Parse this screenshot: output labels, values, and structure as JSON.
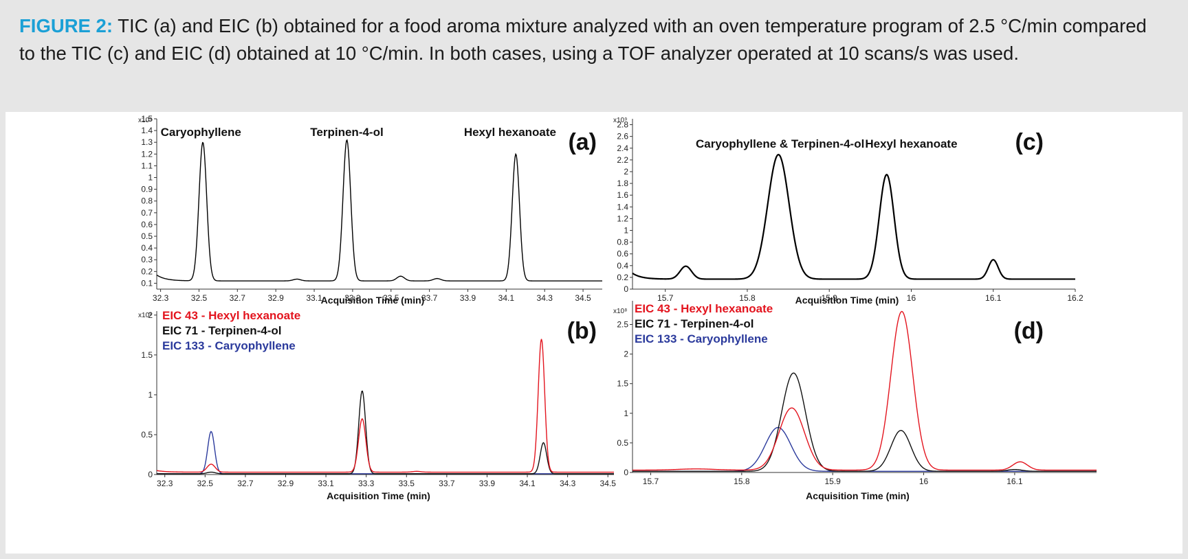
{
  "caption": {
    "label": "FIGURE 2:",
    "text": "TIC (a) and EIC (b) obtained for a food aroma mixture analyzed with an oven temperature program of 2.5 °C/min compared to the TIC (c) and EIC (d) obtained at 10 °C/min. In both cases, using a TOF analyzer operated at 10 scans/s was used."
  },
  "chart_data": [
    {
      "id": "a",
      "type": "line",
      "panel_label": "(a)",
      "xlabel": "Acquisition Time (min)",
      "y_multiplier": "x10⁹",
      "xlim": [
        32.28,
        34.6
      ],
      "ylim": [
        0.05,
        1.5
      ],
      "xticks": [
        32.3,
        32.5,
        32.7,
        32.9,
        33.1,
        33.3,
        33.5,
        33.7,
        33.9,
        34.1,
        34.3,
        34.5
      ],
      "yticks": [
        0.1,
        0.2,
        0.3,
        0.4,
        0.5,
        0.6,
        0.7,
        0.8,
        0.9,
        1,
        1.1,
        1.2,
        1.3,
        1.4,
        1.5
      ],
      "annotations": [
        {
          "text": "Caryophyllene",
          "x": 32.51
        },
        {
          "text": "Terpinen-4-ol",
          "x": 33.27
        },
        {
          "text": "Hexyl hexanoate",
          "x": 34.12
        }
      ],
      "series": [
        {
          "name": "TIC",
          "color": "#000000",
          "baseline": 0.12,
          "start": {
            "x": 32.28,
            "y": 0.17
          },
          "peaks": [
            {
              "x": 32.52,
              "h": 1.18,
              "w": 0.02
            },
            {
              "x": 33.27,
              "h": 1.2,
              "w": 0.02
            },
            {
              "x": 34.15,
              "h": 1.08,
              "w": 0.019
            },
            {
              "x": 33.01,
              "h": 0.015,
              "w": 0.02
            },
            {
              "x": 33.55,
              "h": 0.04,
              "w": 0.02
            },
            {
              "x": 33.74,
              "h": 0.02,
              "w": 0.02
            }
          ]
        }
      ]
    },
    {
      "id": "b",
      "type": "line",
      "panel_label": "(b)",
      "xlabel": "Acquisition Time (min)",
      "y_multiplier": "x10⁸",
      "xlim": [
        32.26,
        34.53
      ],
      "ylim": [
        0,
        2.05
      ],
      "xticks": [
        32.3,
        32.5,
        32.7,
        32.9,
        33.1,
        33.3,
        33.5,
        33.7,
        33.9,
        34.1,
        34.3,
        34.5
      ],
      "yticks": [
        0,
        0.5,
        1,
        1.5,
        2
      ],
      "legend": [
        {
          "text": "EIC 43 - Hexyl hexanoate",
          "color": "#e3141e"
        },
        {
          "text": "EIC 71 - Terpinen-4-ol",
          "color": "#111111"
        },
        {
          "text": "EIC 133 - Caryophyllene",
          "color": "#2b3a9c"
        }
      ],
      "series": [
        {
          "name": "EIC 133",
          "color": "#2b3a9c",
          "baseline": 0.01,
          "peaks": [
            {
              "x": 32.53,
              "h": 0.53,
              "w": 0.017
            }
          ]
        },
        {
          "name": "EIC 71",
          "color": "#111111",
          "baseline": 0.01,
          "peaks": [
            {
              "x": 32.53,
              "h": 0.02,
              "w": 0.02
            },
            {
              "x": 33.28,
              "h": 1.04,
              "w": 0.017
            },
            {
              "x": 34.18,
              "h": 0.39,
              "w": 0.016
            }
          ]
        },
        {
          "name": "EIC 43",
          "color": "#e3141e",
          "baseline": 0.03,
          "start": {
            "x": 32.26,
            "y": 0.05
          },
          "peaks": [
            {
              "x": 32.53,
              "h": 0.1,
              "w": 0.02
            },
            {
              "x": 33.28,
              "h": 0.67,
              "w": 0.018
            },
            {
              "x": 34.17,
              "h": 1.67,
              "w": 0.016
            },
            {
              "x": 33.55,
              "h": 0.01,
              "w": 0.02
            }
          ]
        }
      ]
    },
    {
      "id": "c",
      "type": "line",
      "panel_label": "(c)",
      "xlabel": "Acquisition Time (min)",
      "y_multiplier": "x10⁹",
      "xlim": [
        15.66,
        16.2
      ],
      "ylim": [
        0,
        2.9
      ],
      "xticks": [
        15.7,
        15.8,
        15.9,
        16,
        16.1,
        16.2
      ],
      "yticks": [
        0,
        0.2,
        0.4,
        0.6,
        0.8,
        1,
        1.2,
        1.4,
        1.6,
        1.8,
        2,
        2.2,
        2.4,
        2.6,
        2.8
      ],
      "annotations": [
        {
          "text": "Caryophyllene & Terpinen-4-ol",
          "x": 15.84
        },
        {
          "text": "Hexyl hexanoate",
          "x": 16.0
        }
      ],
      "series": [
        {
          "name": "TIC",
          "color": "#000000",
          "baseline": 0.17,
          "start": {
            "x": 15.66,
            "y": 0.27
          },
          "peaks": [
            {
              "x": 15.725,
              "h": 0.22,
              "w": 0.007
            },
            {
              "x": 15.838,
              "h": 2.12,
              "w": 0.013
            },
            {
              "x": 15.97,
              "h": 1.78,
              "w": 0.009
            },
            {
              "x": 16.1,
              "h": 0.33,
              "w": 0.006
            }
          ]
        }
      ]
    },
    {
      "id": "d",
      "type": "line",
      "panel_label": "(d)",
      "xlabel": "Acquisition Time (min)",
      "y_multiplier": "x10⁸",
      "xlim": [
        15.68,
        16.19
      ],
      "ylim": [
        0,
        2.9
      ],
      "xticks": [
        15.7,
        15.8,
        15.9,
        16,
        16.1
      ],
      "yticks": [
        0,
        0.5,
        1,
        1.5,
        2,
        2.5
      ],
      "legend": [
        {
          "text": "EIC 43 - Hexyl hexanoate",
          "color": "#e3141e"
        },
        {
          "text": "EIC 71 - Terpinen-4-ol",
          "color": "#111111"
        },
        {
          "text": "EIC 133 - Caryophyllene",
          "color": "#2b3a9c"
        }
      ],
      "series": [
        {
          "name": "EIC 133",
          "color": "#2b3a9c",
          "baseline": 0.02,
          "peaks": [
            {
              "x": 15.84,
              "h": 0.74,
              "w": 0.014
            }
          ]
        },
        {
          "name": "EIC 71",
          "color": "#111111",
          "baseline": 0.02,
          "peaks": [
            {
              "x": 15.857,
              "h": 1.66,
              "w": 0.013
            },
            {
              "x": 15.975,
              "h": 0.69,
              "w": 0.011
            },
            {
              "x": 16.1,
              "h": 0.03,
              "w": 0.008
            }
          ]
        },
        {
          "name": "EIC 43",
          "color": "#e3141e",
          "baseline": 0.04,
          "peaks": [
            {
              "x": 15.855,
              "h": 1.05,
              "w": 0.014
            },
            {
              "x": 15.976,
              "h": 2.68,
              "w": 0.012
            },
            {
              "x": 16.106,
              "h": 0.14,
              "w": 0.008
            },
            {
              "x": 15.75,
              "h": 0.02,
              "w": 0.02
            }
          ]
        }
      ]
    }
  ]
}
